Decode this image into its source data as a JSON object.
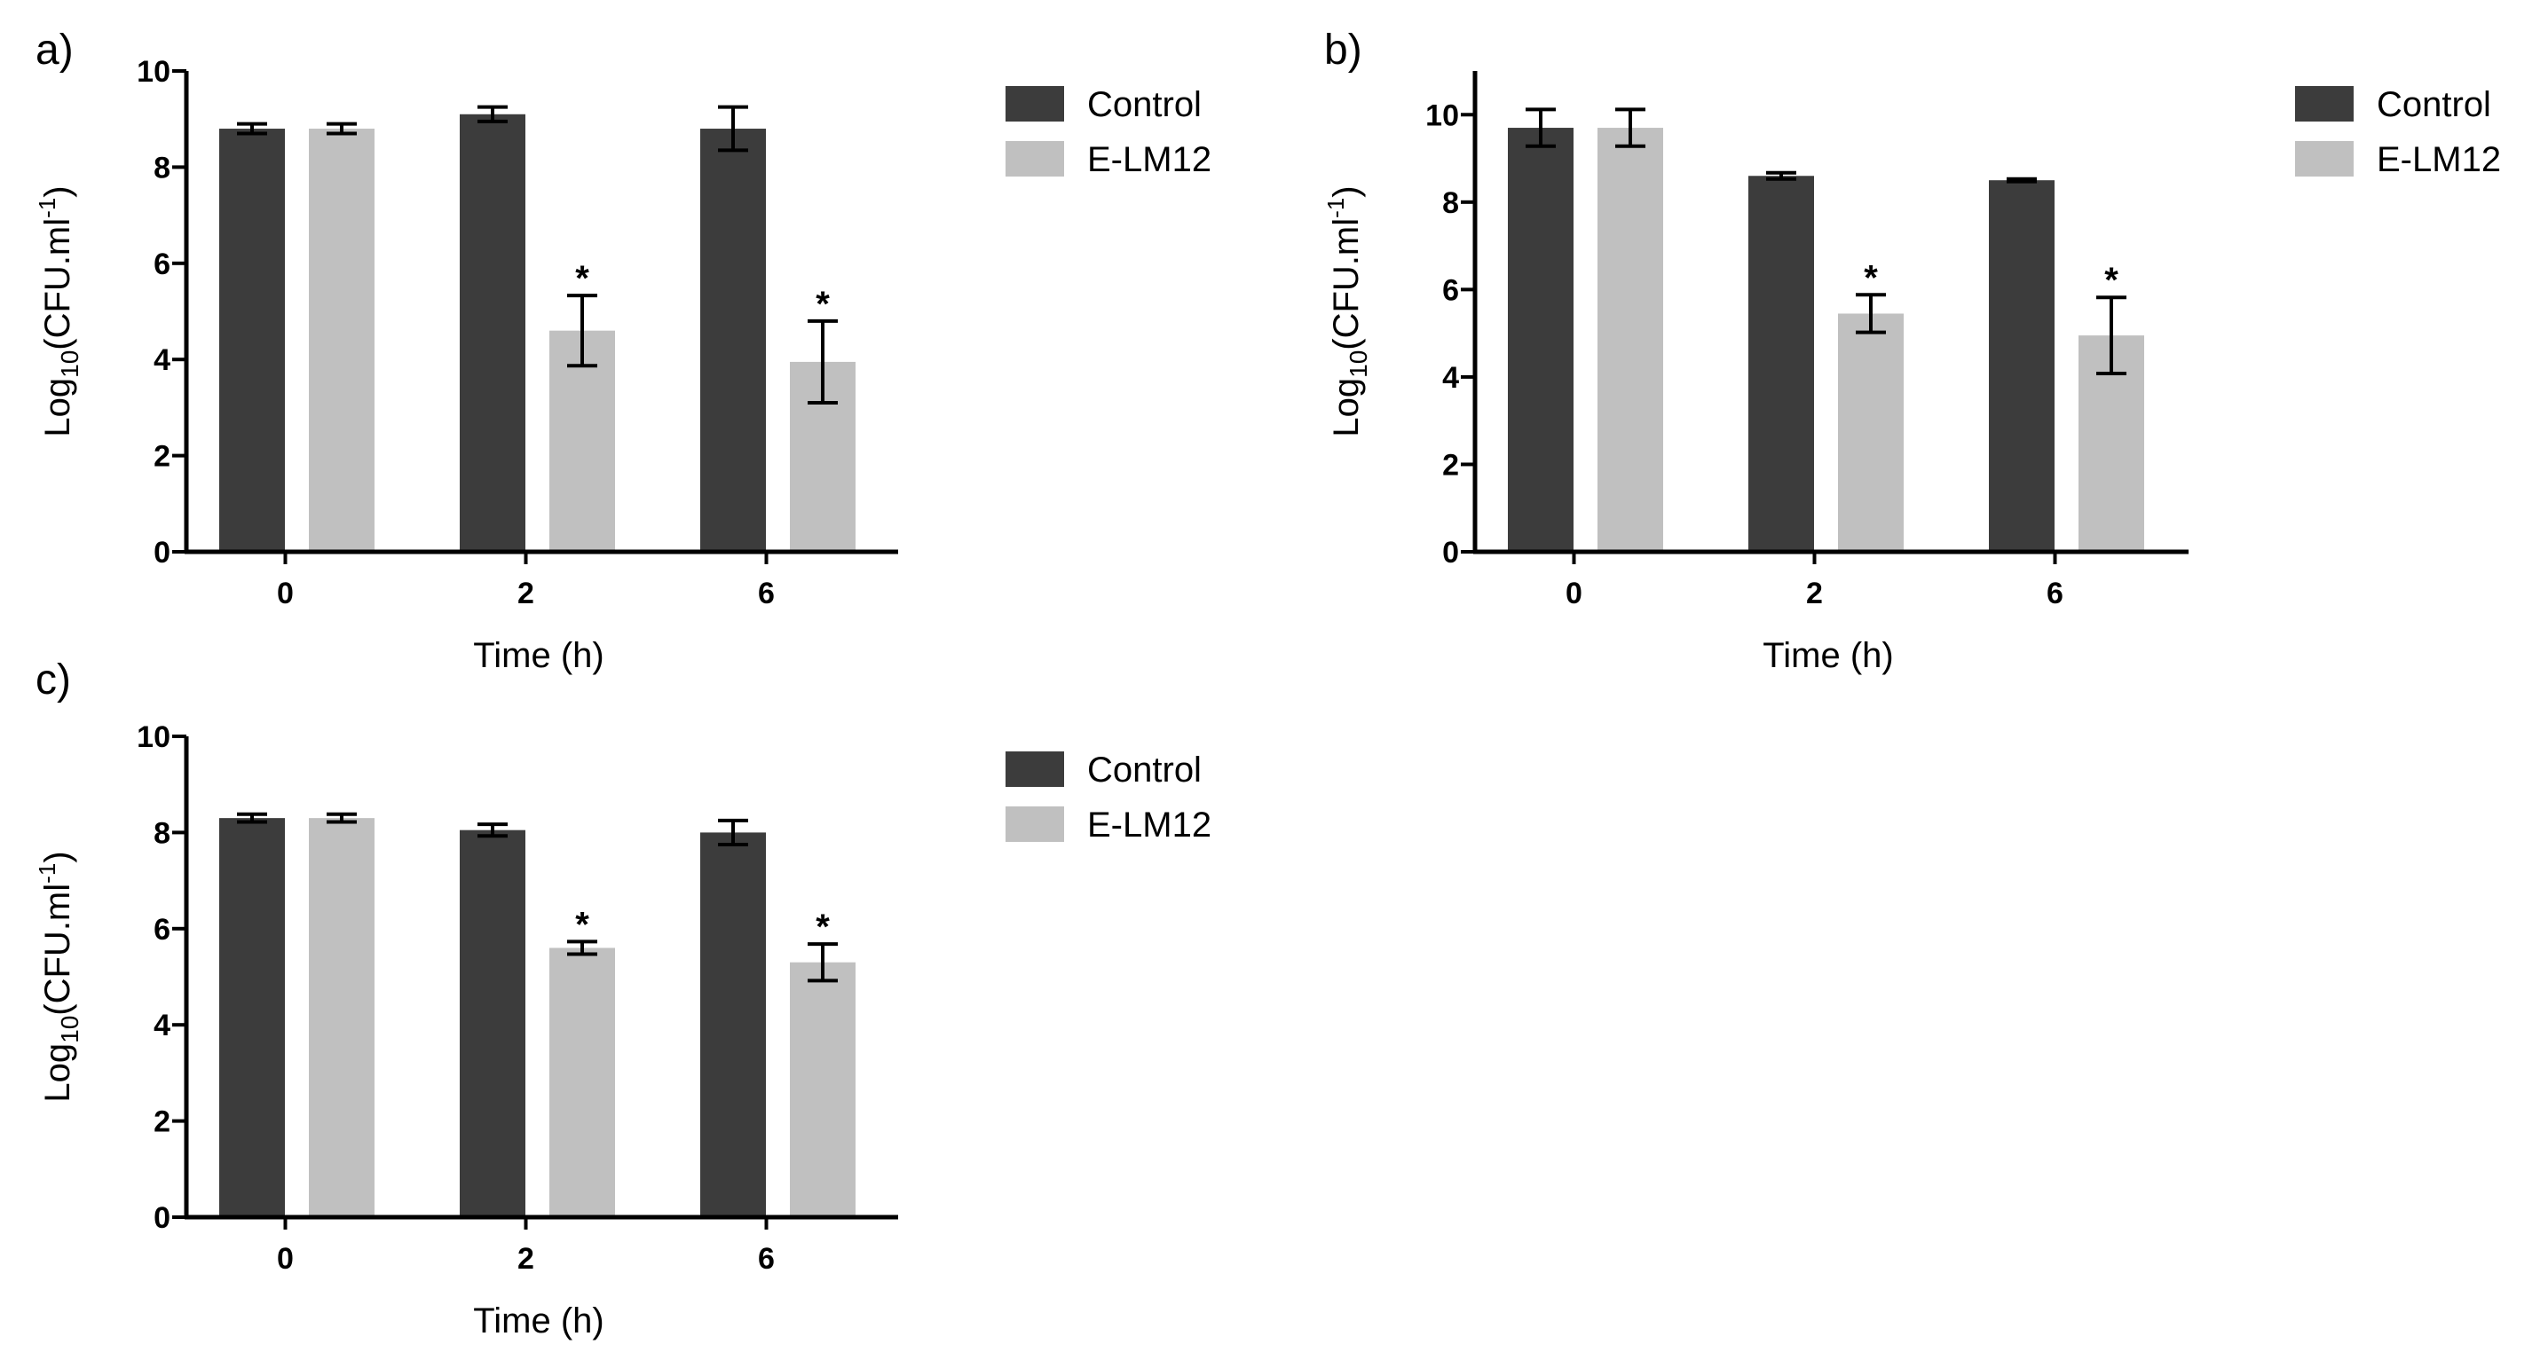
{
  "colors": {
    "control": "#3c3c3c",
    "treatment": "#c0c0c0",
    "axis": "#000000",
    "error_bar": "#000000"
  },
  "chart_data": [
    {
      "type": "bar",
      "panel_label": "a)",
      "categories": [
        "0",
        "2",
        "6"
      ],
      "series": [
        {
          "name": "Control",
          "values": [
            8.8,
            9.1,
            8.8
          ],
          "errors": [
            0.1,
            0.15,
            0.45
          ],
          "significant": [
            false,
            false,
            false
          ]
        },
        {
          "name": "E-LM12",
          "values": [
            8.8,
            4.6,
            3.95
          ],
          "errors": [
            0.1,
            0.73,
            0.85
          ],
          "significant": [
            false,
            true,
            true
          ]
        }
      ],
      "yticks": [
        "0",
        "2",
        "4",
        "6",
        "8",
        "10"
      ],
      "ylim": [
        0,
        10
      ],
      "xlabel": "Time (h)",
      "ylabel": "Log10 (CFU.ml-1)",
      "ylabel_base": "Log",
      "ylabel_sub": "10",
      "ylabel_main": "(CFU.ml",
      "ylabel_sup": "-1",
      "ylabel_close": ")",
      "significance_marker": "*",
      "legend_position": "right"
    },
    {
      "type": "bar",
      "panel_label": "b)",
      "categories": [
        "0",
        "2",
        "6"
      ],
      "series": [
        {
          "name": "Control",
          "values": [
            9.7,
            8.6,
            8.5
          ],
          "errors": [
            0.42,
            0.07,
            0.03
          ],
          "significant": [
            false,
            false,
            false
          ]
        },
        {
          "name": "E-LM12",
          "values": [
            9.7,
            5.45,
            4.95
          ],
          "errors": [
            0.42,
            0.43,
            0.87
          ],
          "significant": [
            false,
            true,
            true
          ]
        }
      ],
      "yticks": [
        "0",
        "2",
        "4",
        "6",
        "8",
        "10"
      ],
      "ylim": [
        0,
        11
      ],
      "xlabel": "Time (h)",
      "ylabel": "Log10 (CFU.ml-1)",
      "ylabel_base": "Log",
      "ylabel_sub": "10",
      "ylabel_main": "(CFU.ml",
      "ylabel_sup": "-1",
      "ylabel_close": ")",
      "significance_marker": "*",
      "legend_position": "right"
    },
    {
      "type": "bar",
      "panel_label": "c)",
      "categories": [
        "0",
        "2",
        "6"
      ],
      "series": [
        {
          "name": "Control",
          "values": [
            8.3,
            8.05,
            8.0
          ],
          "errors": [
            0.08,
            0.12,
            0.25
          ],
          "significant": [
            false,
            false,
            false
          ]
        },
        {
          "name": "E-LM12",
          "values": [
            8.3,
            5.6,
            5.3
          ],
          "errors": [
            0.08,
            0.13,
            0.38
          ],
          "significant": [
            false,
            true,
            true
          ]
        }
      ],
      "yticks": [
        "0",
        "2",
        "4",
        "6",
        "8",
        "10"
      ],
      "ylim": [
        0,
        10
      ],
      "xlabel": "Time (h)",
      "ylabel": "Log10 (CFU.ml-1)",
      "ylabel_base": "Log",
      "ylabel_sub": "10",
      "ylabel_main": "(CFU.ml",
      "ylabel_sup": "-1",
      "ylabel_close": ")",
      "significance_marker": "*",
      "legend_position": "right"
    }
  ]
}
